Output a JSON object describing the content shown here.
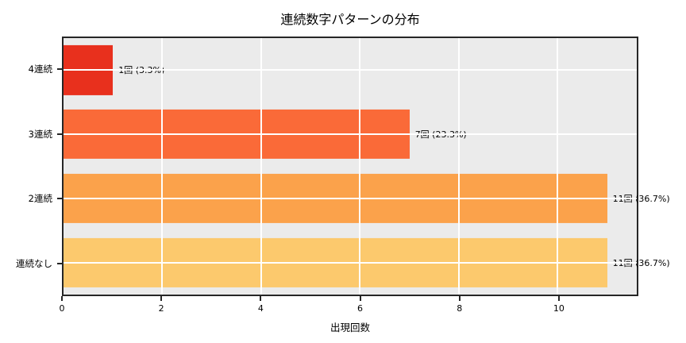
{
  "chart_data": {
    "type": "bar",
    "orientation": "horizontal",
    "title": "連続数字パターンの分布",
    "xlabel": "出現回数",
    "ylabel": "",
    "categories": [
      "4連続",
      "3連続",
      "2連続",
      "連続なし"
    ],
    "values": [
      1,
      7,
      11,
      11
    ],
    "bar_labels": [
      "1回 (3.3%)",
      "7回 (23.3%)",
      "11回 (36.7%)",
      "11回 (36.7%)"
    ],
    "bar_colors": [
      "#e8301d",
      "#fa6a38",
      "#fba24b",
      "#fcc96d"
    ],
    "xlim": [
      0,
      11.6
    ],
    "xticks": [
      0,
      2,
      4,
      6,
      8,
      10
    ],
    "grid": true,
    "legend": "none",
    "plot_bg": "#ebebeb",
    "grid_color": "#ffffff",
    "spine_color": "#262626",
    "text_color": "#000000"
  }
}
